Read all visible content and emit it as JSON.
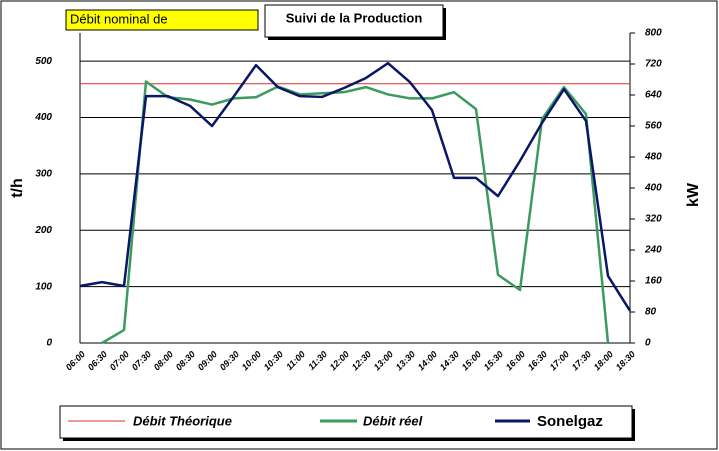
{
  "chart_data": {
    "type": "line",
    "title": "Suivi de la Production",
    "subtitle": "Débit nominal de",
    "ylabel": "t/h",
    "y2label": "kW",
    "categories": [
      "06:00",
      "06:30",
      "07:00",
      "07:30",
      "08:00",
      "08:30",
      "09:00",
      "09:30",
      "10:00",
      "10:30",
      "11:00",
      "11:30",
      "12:00",
      "12:30",
      "13:00",
      "13:30",
      "14:00",
      "14:30",
      "15:00",
      "15:30",
      "16:00",
      "16:30",
      "17:00",
      "17:30",
      "18:00",
      "18:30"
    ],
    "series": [
      {
        "name": "Débit Théorique",
        "color": "#d9302a",
        "values": [
          460,
          460,
          460,
          460,
          460,
          460,
          460,
          460,
          460,
          460,
          460,
          460,
          460,
          460,
          460,
          460,
          460,
          460,
          460,
          460,
          460,
          460,
          460,
          460,
          460,
          460
        ]
      },
      {
        "name": "Débit réel",
        "color": "#3c9a5f",
        "values": [
          null,
          0,
          23,
          464,
          436,
          432,
          423,
          434,
          436,
          455,
          441,
          443,
          445,
          454,
          441,
          434,
          434,
          445,
          415,
          121,
          94,
          397,
          454,
          406,
          0,
          null
        ]
      },
      {
        "name": "Sonelgaz",
        "color": "#0a1668",
        "axis": "y2",
        "values": [
          147,
          157,
          147,
          637,
          637,
          612,
          560,
          637,
          717,
          660,
          637,
          635,
          658,
          684,
          722,
          673,
          601,
          426,
          426,
          379,
          470,
          568,
          655,
          573,
          173,
          83
        ]
      }
    ],
    "ylim": [
      0,
      550
    ],
    "yticks": [
      0,
      100,
      200,
      300,
      400,
      500
    ],
    "y2lim": [
      0,
      800
    ],
    "y2ticks": [
      0,
      80,
      160,
      240,
      320,
      400,
      480,
      560,
      640,
      720,
      800
    ],
    "grid": true,
    "legend": "bottom"
  }
}
